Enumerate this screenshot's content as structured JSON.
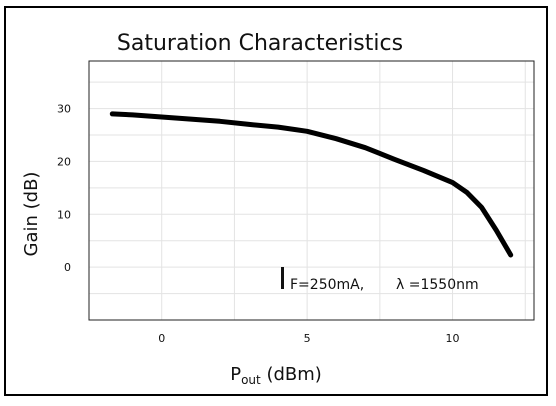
{
  "chart_data": {
    "type": "line",
    "title": "Saturation Characteristics",
    "xlabel": "P",
    "xlabel_sub": "out",
    "xlabel_unit": " (dBm)",
    "ylabel": "Gain (dB)",
    "xlim": [
      -2.5,
      12.8
    ],
    "ylim": [
      -10,
      39
    ],
    "xticks": [
      0,
      5,
      10
    ],
    "xtick_labels": [
      "0",
      "5",
      "10"
    ],
    "yticks": [
      0,
      10,
      20,
      30
    ],
    "ytick_labels": [
      "0",
      "10",
      "20",
      "30"
    ],
    "grid": true,
    "annotation": {
      "current": "F=250mA,",
      "wavelength": "λ =1550nm"
    },
    "series": [
      {
        "color": "#000000",
        "x": [
          -1.7,
          -1.0,
          0.0,
          1.0,
          2.0,
          3.0,
          4.0,
          5.0,
          6.0,
          7.0,
          8.0,
          9.0,
          10.0,
          10.5,
          11.0,
          11.5,
          12.0
        ],
        "y": [
          29.0,
          28.8,
          28.4,
          28.0,
          27.6,
          27.0,
          26.5,
          25.7,
          24.3,
          22.6,
          20.4,
          18.3,
          16.0,
          14.1,
          11.3,
          7.0,
          2.3
        ]
      }
    ]
  }
}
